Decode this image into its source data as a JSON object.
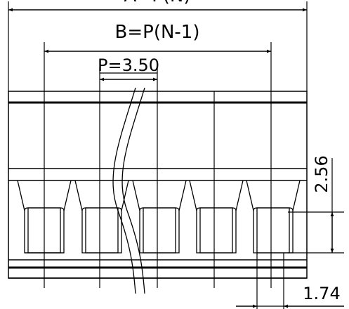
{
  "dimensions": {
    "overall_label": "A=P(N)",
    "span_label": "B=P(N-1)",
    "pitch_label": "P=3.50",
    "height_label": "2.56",
    "width_label": "1.74"
  },
  "pin_count": 5
}
